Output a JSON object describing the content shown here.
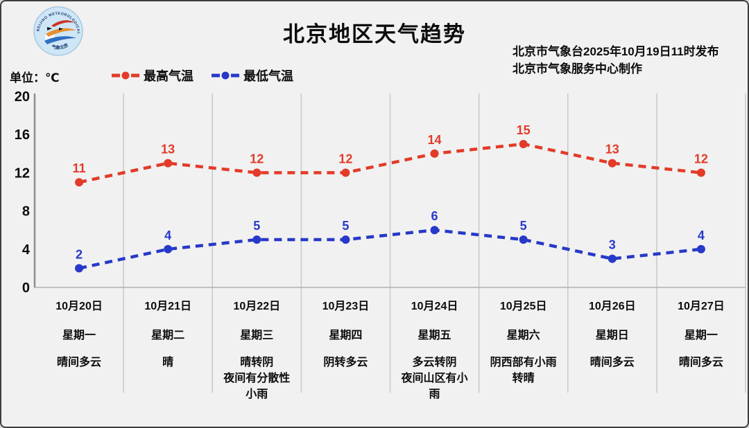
{
  "page": {
    "title": "北京地区天气趋势",
    "publisher_line1": "北京市气象台2025年10月19日11时发布",
    "publisher_line2": "北京市气象服务中心制作",
    "unit_label": "单位：℃",
    "logo_text_top": "BEIJING METEOROLOGICAL SERVICE",
    "logo_text_bottom": "气象北京"
  },
  "legend": [
    {
      "label": "最高气温",
      "color": "#e23b28"
    },
    {
      "label": "最低气温",
      "color": "#2639c8"
    }
  ],
  "colors": {
    "background": "#f1f1f1",
    "gridline": "#c8c8c8",
    "y_axis": "#8c8c8c",
    "x_axis": "#b0b0b0",
    "text": "#0c0c0c"
  },
  "chart_data": {
    "type": "line",
    "title": "北京地区天气趋势",
    "ylabel": "单位：℃",
    "ylim": [
      0,
      20
    ],
    "yticks": [
      0,
      4,
      8,
      12,
      16,
      20
    ],
    "grid": "vertical-only",
    "legend_position": "top-left",
    "line_style": "dashed-with-point-markers",
    "categories": [
      "10月20日",
      "10月21日",
      "10月22日",
      "10月23日",
      "10月24日",
      "10月25日",
      "10月26日",
      "10月27日"
    ],
    "series": [
      {
        "name": "最高气温",
        "color": "#e23b28",
        "values": [
          11,
          13,
          12,
          12,
          14,
          15,
          13,
          12
        ]
      },
      {
        "name": "最低气温",
        "color": "#2639c8",
        "values": [
          2,
          4,
          5,
          5,
          6,
          5,
          3,
          4
        ]
      }
    ],
    "days": [
      {
        "date": "10月20日",
        "weekday": "星期一",
        "weather": "晴间多云"
      },
      {
        "date": "10月21日",
        "weekday": "星期二",
        "weather": "晴"
      },
      {
        "date": "10月22日",
        "weekday": "星期三",
        "weather": "晴转阴\n夜间有分散性\n小雨"
      },
      {
        "date": "10月23日",
        "weekday": "星期四",
        "weather": "阴转多云"
      },
      {
        "date": "10月24日",
        "weekday": "星期五",
        "weather": "多云转阴\n夜间山区有小\n雨"
      },
      {
        "date": "10月25日",
        "weekday": "星期六",
        "weather": "阴西部有小雨\n转晴"
      },
      {
        "date": "10月26日",
        "weekday": "星期日",
        "weather": "晴间多云"
      },
      {
        "date": "10月27日",
        "weekday": "星期一",
        "weather": "晴间多云"
      }
    ]
  }
}
